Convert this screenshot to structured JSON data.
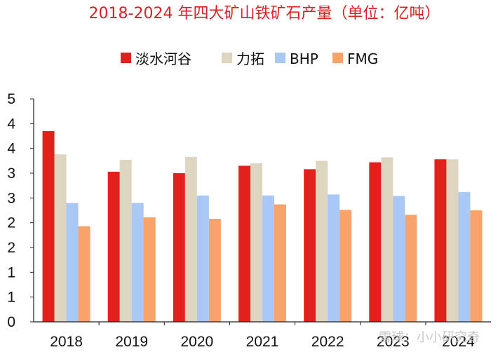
{
  "chart_data": {
    "type": "bar",
    "title": "2018-2024 年四大矿山铁矿石产量（单位：亿吨）",
    "categories": [
      "2018",
      "2019",
      "2020",
      "2021",
      "2022",
      "2023",
      "2024"
    ],
    "series": [
      {
        "name": "淡水河谷",
        "color": "#e2201c",
        "values": [
          3.85,
          3.03,
          3.0,
          3.15,
          3.08,
          3.22,
          3.28
        ]
      },
      {
        "name": "力拓",
        "color": "#ddd5c0",
        "values": [
          3.38,
          3.27,
          3.33,
          3.2,
          3.25,
          3.32,
          3.28
        ]
      },
      {
        "name": "BHP",
        "color": "#a9c8f5",
        "values": [
          2.4,
          2.4,
          2.55,
          2.55,
          2.57,
          2.54,
          2.62
        ]
      },
      {
        "name": "FMG",
        "color": "#f9a36a",
        "values": [
          1.93,
          2.11,
          2.08,
          2.37,
          2.26,
          2.16,
          2.25
        ]
      }
    ],
    "yticks": [
      "0",
      "1",
      "1",
      "2",
      "2",
      "3",
      "3",
      "4",
      "4",
      "5"
    ],
    "ylim": [
      0,
      4.5
    ],
    "grid": false,
    "legend_position": "top"
  },
  "watermark": "雪球：小小研究奇"
}
